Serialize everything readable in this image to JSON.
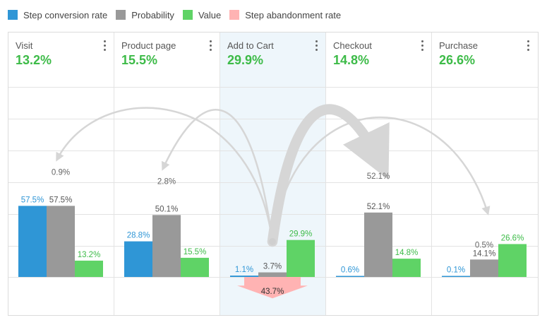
{
  "legend": [
    {
      "label": "Step conversion rate",
      "color": "#2f96d6"
    },
    {
      "label": "Probability",
      "color": "#999999"
    },
    {
      "label": "Value",
      "color": "#5fd366"
    },
    {
      "label": "Step abandonment rate",
      "color": "#ffb3b3"
    }
  ],
  "steps": [
    {
      "name": "Visit",
      "value": "13.2%"
    },
    {
      "name": "Product page",
      "value": "15.5%"
    },
    {
      "name": "Add to Cart",
      "value": "29.9%"
    },
    {
      "name": "Checkout",
      "value": "14.8%"
    },
    {
      "name": "Purchase",
      "value": "26.6%"
    }
  ],
  "chart_data": {
    "type": "bar",
    "title": "",
    "categories": [
      "Visit",
      "Product page",
      "Add to Cart",
      "Checkout",
      "Purchase"
    ],
    "highlighted_step": "Add to Cart",
    "series": [
      {
        "name": "Step conversion rate",
        "color": "#2f96d6",
        "values": [
          57.5,
          28.8,
          1.1,
          0.6,
          0.1
        ],
        "labels": [
          "57.5%",
          "28.8%",
          "1.1%",
          "0.6%",
          "0.1%"
        ]
      },
      {
        "name": "Probability",
        "color": "#999999",
        "values": [
          57.5,
          50.1,
          3.7,
          52.1,
          14.1
        ],
        "labels": [
          "57.5%",
          "50.1%",
          "3.7%",
          "52.1%",
          "14.1%"
        ]
      },
      {
        "name": "Value",
        "color": "#5fd366",
        "values": [
          13.2,
          15.5,
          29.9,
          14.8,
          26.6
        ],
        "labels": [
          "13.2%",
          "15.5%",
          "29.9%",
          "14.8%",
          "26.6%"
        ]
      }
    ],
    "abandonment": {
      "step": "Add to Cart",
      "value": 43.7,
      "label": "43.7%",
      "color": "#ffb3b3"
    },
    "flows": [
      {
        "from": "Add to Cart",
        "to": "Visit",
        "value": 0.9,
        "label": "0.9%"
      },
      {
        "from": "Add to Cart",
        "to": "Product page",
        "value": 2.8,
        "label": "2.8%"
      },
      {
        "from": "Add to Cart",
        "to": "Checkout",
        "value": 52.1,
        "label": "52.1%"
      },
      {
        "from": "Add to Cart",
        "to": "Purchase",
        "value": 0.5,
        "label": "0.5%"
      }
    ],
    "ylim": [
      0,
      100
    ],
    "xlabel": "",
    "ylabel": ""
  }
}
